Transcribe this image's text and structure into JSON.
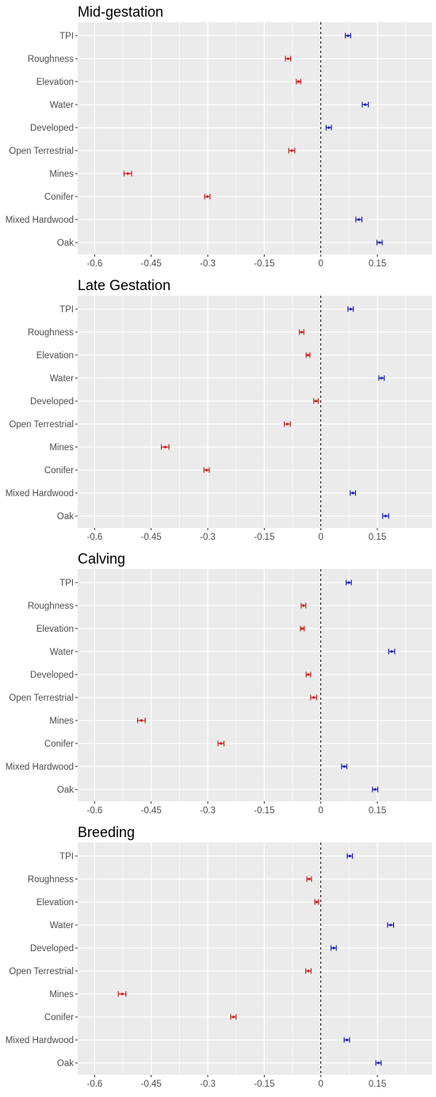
{
  "chart_data": [
    {
      "type": "scatter",
      "title": "Mid-gestation",
      "categories": [
        "TPI",
        "Roughness",
        "Elevation",
        "Water",
        "Developed",
        "Open Terrestrial",
        "Mines",
        "Conifer",
        "Mixed Hardwood",
        "Oak"
      ],
      "values": [
        0.072,
        -0.087,
        -0.059,
        0.118,
        0.021,
        -0.077,
        -0.512,
        -0.301,
        0.101,
        0.156
      ],
      "ci_low": [
        0.065,
        -0.094,
        -0.065,
        0.11,
        0.014,
        -0.085,
        -0.522,
        -0.308,
        0.093,
        0.149
      ],
      "ci_high": [
        0.079,
        -0.08,
        -0.053,
        0.126,
        0.028,
        -0.069,
        -0.502,
        -0.294,
        0.109,
        0.163
      ],
      "xticks": [
        -0.6,
        -0.45,
        -0.3,
        -0.15,
        0,
        0.15
      ],
      "xtick_labels": [
        "-0.6",
        "-0.45",
        "-0.3",
        "-0.15",
        "0",
        "0.15"
      ],
      "xlim": [
        -0.645,
        0.295
      ],
      "reference_line": 0,
      "grid": true
    },
    {
      "type": "scatter",
      "title": "Late Gestation",
      "categories": [
        "TPI",
        "Roughness",
        "Elevation",
        "Water",
        "Developed",
        "Open Terrestrial",
        "Mines",
        "Conifer",
        "Mixed Hardwood",
        "Oak"
      ],
      "values": [
        0.079,
        -0.051,
        -0.034,
        0.161,
        -0.013,
        -0.089,
        -0.413,
        -0.303,
        0.085,
        0.172
      ],
      "ci_low": [
        0.072,
        -0.057,
        -0.039,
        0.154,
        -0.019,
        -0.097,
        -0.423,
        -0.31,
        0.078,
        0.164
      ],
      "ci_high": [
        0.086,
        -0.045,
        -0.029,
        0.168,
        -0.007,
        -0.081,
        -0.403,
        -0.296,
        0.092,
        0.18
      ],
      "xticks": [
        -0.6,
        -0.45,
        -0.3,
        -0.15,
        0,
        0.15
      ],
      "xtick_labels": [
        "-0.6",
        "-0.45",
        "-0.3",
        "-0.15",
        "0",
        "0.15"
      ],
      "xlim": [
        -0.645,
        0.295
      ],
      "reference_line": 0,
      "grid": true
    },
    {
      "type": "scatter",
      "title": "Calving",
      "categories": [
        "TPI",
        "Roughness",
        "Elevation",
        "Water",
        "Developed",
        "Open Terrestrial",
        "Mines",
        "Conifer",
        "Mixed Hardwood",
        "Oak"
      ],
      "values": [
        0.074,
        -0.046,
        -0.049,
        0.188,
        -0.033,
        -0.019,
        -0.476,
        -0.265,
        0.062,
        0.144
      ],
      "ci_low": [
        0.067,
        -0.052,
        -0.054,
        0.18,
        -0.039,
        -0.027,
        -0.486,
        -0.273,
        0.055,
        0.137
      ],
      "ci_high": [
        0.081,
        -0.04,
        -0.044,
        0.196,
        -0.027,
        -0.011,
        -0.466,
        -0.257,
        0.069,
        0.151
      ],
      "xticks": [
        -0.6,
        -0.45,
        -0.3,
        -0.15,
        0,
        0.15
      ],
      "xtick_labels": [
        "-0.6",
        "-0.45",
        "-0.3",
        "-0.15",
        "0",
        "0.15"
      ],
      "xlim": [
        -0.645,
        0.295
      ],
      "reference_line": 0,
      "grid": true
    },
    {
      "type": "scatter",
      "title": "Breeding",
      "categories": [
        "TPI",
        "Roughness",
        "Elevation",
        "Water",
        "Developed",
        "Open Terrestrial",
        "Mines",
        "Conifer",
        "Mixed Hardwood",
        "Oak"
      ],
      "values": [
        0.077,
        -0.031,
        -0.011,
        0.185,
        0.034,
        -0.033,
        -0.527,
        -0.232,
        0.069,
        0.153
      ],
      "ci_low": [
        0.07,
        -0.037,
        -0.016,
        0.177,
        0.027,
        -0.04,
        -0.537,
        -0.239,
        0.062,
        0.146
      ],
      "ci_high": [
        0.084,
        -0.025,
        -0.006,
        0.193,
        0.041,
        -0.026,
        -0.517,
        -0.225,
        0.076,
        0.16
      ],
      "xticks": [
        -0.6,
        -0.45,
        -0.3,
        -0.15,
        0,
        0.15
      ],
      "xtick_labels": [
        "-0.6",
        "-0.45",
        "-0.3",
        "-0.15",
        "0",
        "0.15"
      ],
      "xlim": [
        -0.645,
        0.295
      ],
      "reference_line": 0,
      "grid": true
    }
  ],
  "colors": {
    "positive": "#1f1fb4",
    "negative": "#cc1f1f",
    "panel_background": "#ebebeb",
    "grid_line": "#ffffff",
    "reference_line": "#000000",
    "label_text": "#4d4d4d"
  }
}
